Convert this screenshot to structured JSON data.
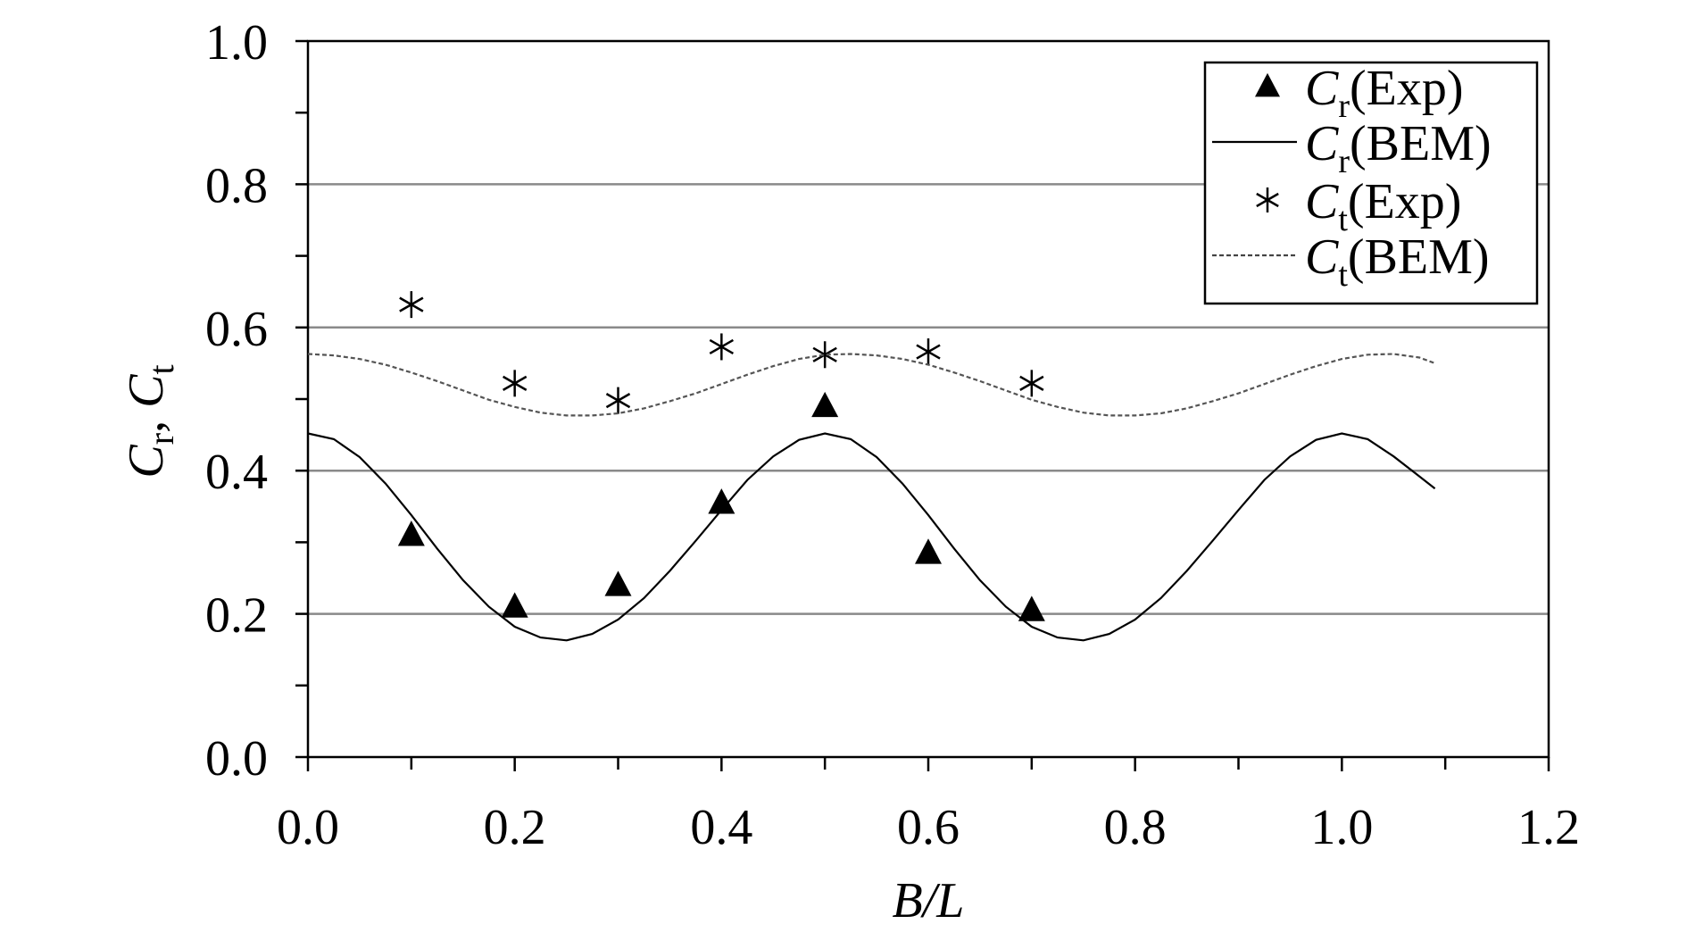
{
  "chart_data": {
    "type": "line",
    "xlabel": "B/L",
    "ylabel": {
      "main1": "C",
      "sub1": "r",
      "sep": ", ",
      "main2": "C",
      "sub2": "t"
    },
    "xlim": [
      0.0,
      1.2
    ],
    "ylim": [
      0.0,
      1.0
    ],
    "x_major_ticks": [
      "0.0",
      "0.2",
      "0.4",
      "0.6",
      "0.8",
      "1.0",
      "1.2"
    ],
    "y_major_ticks": [
      "0.0",
      "0.2",
      "0.4",
      "0.6",
      "0.8",
      "1.0"
    ],
    "x_minor_step": 0.1,
    "y_minor_step": 0.1,
    "grid": "horizontal major gridlines",
    "legend_position": "top-right",
    "series": [
      {
        "name": "Cr(Exp)",
        "label": {
          "main": "C",
          "sub": "r",
          "tail": "(Exp)"
        },
        "kind": "scatter",
        "marker": "filled-triangle",
        "color": "#000000",
        "x": [
          0.1,
          0.2,
          0.3,
          0.4,
          0.5,
          0.6,
          0.7
        ],
        "y": [
          0.31,
          0.21,
          0.24,
          0.355,
          0.49,
          0.285,
          0.205
        ]
      },
      {
        "name": "Cr(BEM)",
        "label": {
          "main": "C",
          "sub": "r",
          "tail": "(BEM)"
        },
        "kind": "line",
        "style": "solid",
        "color": "#000000",
        "x": [
          0.0,
          0.025,
          0.05,
          0.075,
          0.1,
          0.125,
          0.15,
          0.175,
          0.2,
          0.225,
          0.25,
          0.275,
          0.3,
          0.325,
          0.35,
          0.375,
          0.4,
          0.425,
          0.45,
          0.475,
          0.5,
          0.525,
          0.55,
          0.575,
          0.6,
          0.625,
          0.65,
          0.675,
          0.7,
          0.725,
          0.75,
          0.775,
          0.8,
          0.825,
          0.85,
          0.875,
          0.9,
          0.925,
          0.95,
          0.975,
          1.0,
          1.025,
          1.05,
          1.075,
          1.09
        ],
        "y": [
          0.452,
          0.444,
          0.419,
          0.382,
          0.338,
          0.291,
          0.247,
          0.21,
          0.182,
          0.167,
          0.163,
          0.172,
          0.192,
          0.222,
          0.26,
          0.302,
          0.345,
          0.387,
          0.42,
          0.443,
          0.452,
          0.444,
          0.419,
          0.382,
          0.338,
          0.291,
          0.247,
          0.21,
          0.182,
          0.167,
          0.163,
          0.172,
          0.192,
          0.222,
          0.26,
          0.302,
          0.345,
          0.387,
          0.42,
          0.443,
          0.452,
          0.444,
          0.42,
          0.392,
          0.375
        ]
      },
      {
        "name": "Ct(Exp)",
        "label": {
          "main": "C",
          "sub": "t",
          "tail": "(Exp)"
        },
        "kind": "scatter",
        "marker": "asterisk",
        "color": "#000000",
        "x": [
          0.1,
          0.2,
          0.3,
          0.4,
          0.5,
          0.6,
          0.7
        ],
        "y": [
          0.632,
          0.522,
          0.498,
          0.573,
          0.562,
          0.566,
          0.522
        ]
      },
      {
        "name": "Ct(BEM)",
        "label": {
          "main": "C",
          "sub": "t",
          "tail": "(BEM)"
        },
        "kind": "line",
        "style": "dashed",
        "color": "#000000",
        "x": [
          0.0,
          0.025,
          0.05,
          0.075,
          0.1,
          0.125,
          0.15,
          0.175,
          0.2,
          0.225,
          0.25,
          0.275,
          0.3,
          0.325,
          0.35,
          0.375,
          0.4,
          0.425,
          0.45,
          0.475,
          0.5,
          0.525,
          0.55,
          0.575,
          0.6,
          0.625,
          0.65,
          0.675,
          0.7,
          0.725,
          0.75,
          0.775,
          0.8,
          0.825,
          0.85,
          0.875,
          0.9,
          0.925,
          0.95,
          0.975,
          1.0,
          1.025,
          1.05,
          1.075,
          1.09
        ],
        "y": [
          0.563,
          0.561,
          0.556,
          0.548,
          0.537,
          0.525,
          0.512,
          0.499,
          0.489,
          0.481,
          0.477,
          0.477,
          0.48,
          0.487,
          0.497,
          0.508,
          0.521,
          0.534,
          0.546,
          0.556,
          0.562,
          0.563,
          0.561,
          0.556,
          0.548,
          0.537,
          0.525,
          0.512,
          0.499,
          0.489,
          0.481,
          0.477,
          0.477,
          0.48,
          0.487,
          0.497,
          0.508,
          0.521,
          0.534,
          0.546,
          0.556,
          0.562,
          0.563,
          0.558,
          0.55
        ]
      }
    ]
  }
}
